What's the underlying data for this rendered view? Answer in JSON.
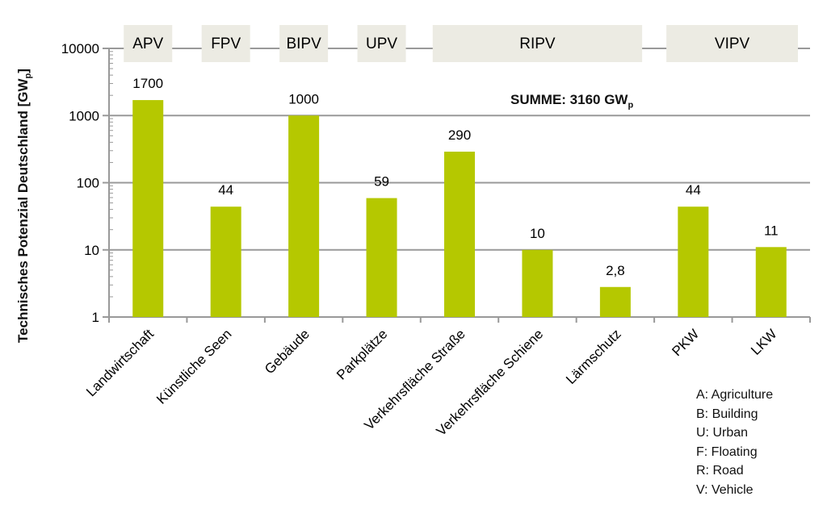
{
  "chart_data": {
    "type": "bar",
    "ylabel": "Technisches Potenzial Deutschland [GW",
    "ylabel_sub": "p",
    "ylabel_end": "]",
    "yscale": "log",
    "ylim": [
      1,
      10000
    ],
    "yticks": [
      "1",
      "10",
      "100",
      "1000",
      "10000"
    ],
    "grid": true,
    "categories": [
      "Landwirtschaft",
      "Künstliche Seen",
      "Gebäude",
      "Parkplätze",
      "Verkehrsfläche Straße",
      "Verkehrsfläche Schiene",
      "Lärmschutz",
      "PKW",
      "LKW"
    ],
    "values": [
      1700,
      44,
      1000,
      59,
      290,
      10,
      2.8,
      44,
      11
    ],
    "data_labels": [
      "1700",
      "44",
      "1000",
      "59",
      "290",
      "10",
      "2,8",
      "44",
      "11"
    ],
    "bar_color": "#b5c800",
    "groups": [
      {
        "label": "APV",
        "from": 0,
        "to": 0
      },
      {
        "label": "FPV",
        "from": 1,
        "to": 1
      },
      {
        "label": "BIPV",
        "from": 2,
        "to": 2
      },
      {
        "label": "UPV",
        "from": 3,
        "to": 3
      },
      {
        "label": "RIPV",
        "from": 4,
        "to": 6
      },
      {
        "label": "VIPV",
        "from": 7,
        "to": 8
      }
    ],
    "group_box_color": "#ecebe3",
    "annotation": {
      "prefix": "SUMME:  3160  GW",
      "sub": "p"
    },
    "legend": [
      "A: Agriculture",
      "B: Building",
      "U: Urban",
      "F: Floating",
      "R: Road",
      "V: Vehicle"
    ]
  }
}
